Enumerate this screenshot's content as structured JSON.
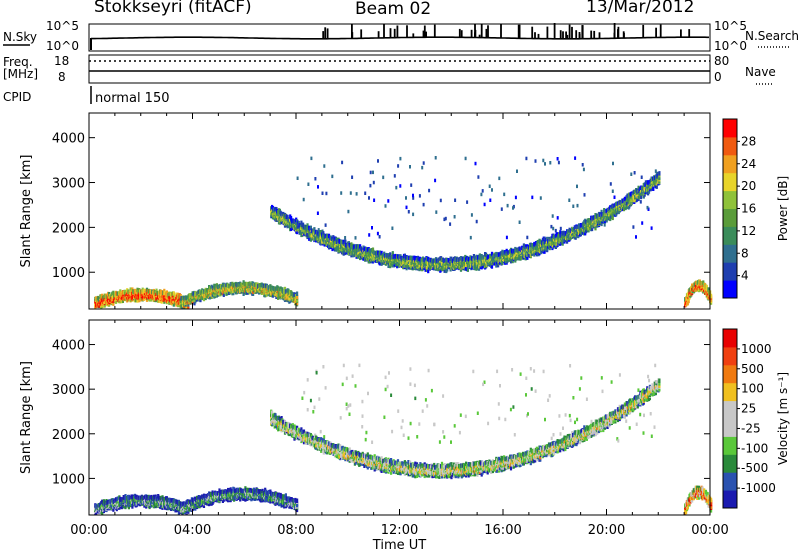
{
  "header": {
    "site": "Stokkseyri (fitACF)",
    "beam": "Beam 02",
    "date": "13/Mar/2012"
  },
  "top_strip": {
    "nsky_label": "N.Sky",
    "nsky_ticks": [
      "10^5",
      "10^0"
    ],
    "nsearch_label": "N.Search",
    "nsearch_ticks": [
      "10^5",
      "10^0"
    ],
    "freq_label": "Freq.",
    "freq_unit": "[MHz]",
    "freq_ticks": [
      "18",
      "8"
    ],
    "nave_label": "Nave",
    "nave_ticks": [
      "80",
      "0"
    ],
    "cpid_label": "CPID",
    "cpid_value": "normal 150"
  },
  "chart_data": [
    {
      "type": "heatmap",
      "name": "power",
      "ylabel": "Slant Range [km]",
      "yticks": [
        "4000",
        "3000",
        "2000",
        "1000"
      ],
      "ylim": [
        180,
        4550
      ],
      "xlim": [
        0,
        24
      ],
      "colorbar_label": "Power [dB]",
      "colorbar_ticks": [
        "28",
        "24",
        "20",
        "16",
        "12",
        "8",
        "4"
      ],
      "colors": [
        "#0000ff",
        "#1f3fb0",
        "#2f6f8f",
        "#3a8c5a",
        "#5a9c3a",
        "#8fc23a",
        "#e8d42a",
        "#f0a020",
        "#f05a10",
        "#ff0000"
      ],
      "bands": [
        {
          "t_start": 7.0,
          "t_end": 22.0,
          "range_start": 2350,
          "range_mid": 1200,
          "range_end": 3100,
          "level": 0.45
        },
        {
          "t_start": 0.2,
          "t_end": 3.8,
          "range_start": 300,
          "range_mid": 500,
          "range_end": 300,
          "level": 0.85
        },
        {
          "t_start": 3.5,
          "t_end": 8.0,
          "range_start": 300,
          "range_mid": 650,
          "range_end": 400,
          "level": 0.6
        },
        {
          "t_start": 23.0,
          "t_end": 24.0,
          "range_start": 300,
          "range_mid": 700,
          "range_end": 400,
          "level": 0.8
        }
      ]
    },
    {
      "type": "heatmap",
      "name": "velocity",
      "ylabel": "Slant Range [km]",
      "yticks": [
        "4000",
        "3000",
        "2000",
        "1000"
      ],
      "ylim": [
        180,
        4550
      ],
      "xlim": [
        0,
        24
      ],
      "xticks": [
        "00:00",
        "04:00",
        "08:00",
        "12:00",
        "16:00",
        "20:00",
        "00:00"
      ],
      "xlabel": "Time UT",
      "colorbar_label": "Velocity [m s⁻¹]",
      "colorbar_ticks": [
        "1000",
        "500",
        "100",
        "25",
        "-25",
        "-100",
        "-500",
        "-1000"
      ],
      "colors": [
        "#1a1ab0",
        "#2a52b0",
        "#2a8a3a",
        "#5ac83a",
        "#c8c8c8",
        "#c8c8c8",
        "#f0c020",
        "#f07a10",
        "#f04010",
        "#e80000"
      ],
      "bands": [
        {
          "t_start": 7.0,
          "t_end": 22.0,
          "range_start": 2350,
          "range_mid": 1200,
          "range_end": 3100,
          "level": 0.5
        },
        {
          "t_start": 0.2,
          "t_end": 3.8,
          "range_start": 300,
          "range_mid": 500,
          "range_end": 300,
          "level": 0.3
        },
        {
          "t_start": 3.5,
          "t_end": 8.0,
          "range_start": 300,
          "range_mid": 650,
          "range_end": 400,
          "level": 0.3
        },
        {
          "t_start": 23.0,
          "t_end": 24.0,
          "range_start": 300,
          "range_mid": 700,
          "range_end": 400,
          "level": 0.75
        }
      ]
    }
  ]
}
